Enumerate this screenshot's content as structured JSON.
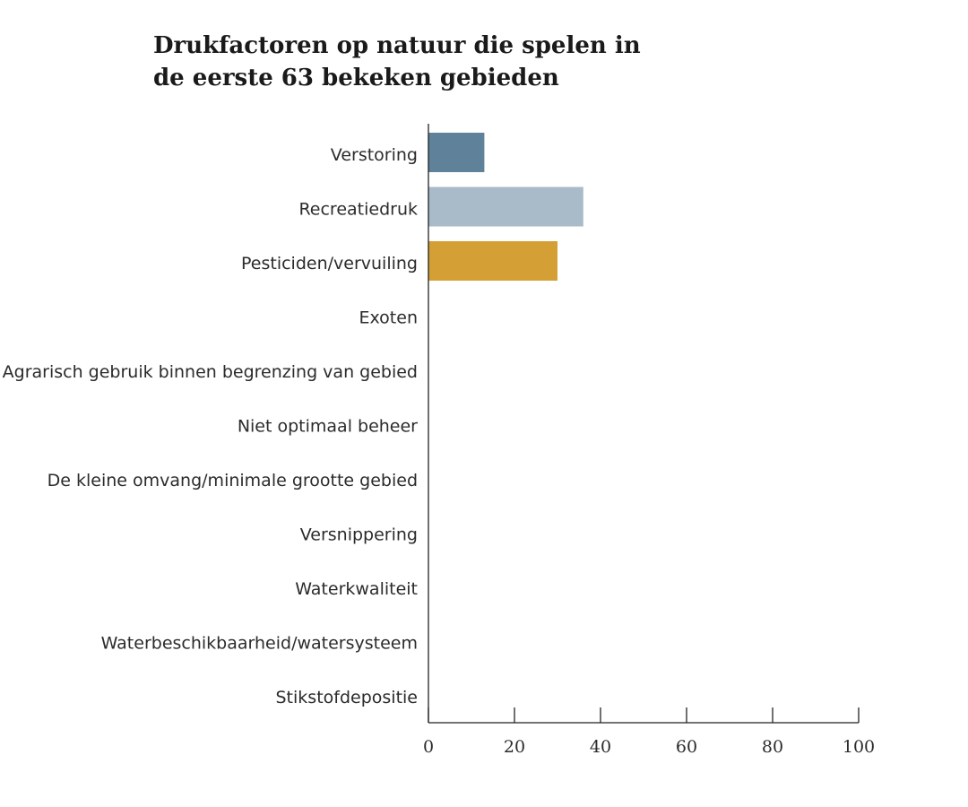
{
  "chart_data": {
    "type": "bar",
    "orientation": "horizontal",
    "title_lines": [
      "Drukfactoren op natuur die spelen in",
      "de eerste 63 bekeken gebieden"
    ],
    "categories": [
      "Verstoring",
      "Recreatiedruk",
      "Pesticiden/vervuiling",
      "Exoten",
      "Agrarisch gebruik binnen begrenzing van gebied",
      "Niet optimaal beheer",
      "De kleine omvang/minimale grootte gebied",
      "Versnippering",
      "Waterkwaliteit",
      "Waterbeschikbaarheid/watersysteem",
      "Stikstofdepositie"
    ],
    "values": [
      13,
      36,
      30,
      null,
      null,
      null,
      null,
      null,
      null,
      null,
      null
    ],
    "bar_colors": [
      "#5f8199",
      "#a9bac8",
      "#d4a035",
      null,
      null,
      null,
      null,
      null,
      null,
      null,
      null
    ],
    "xlim": [
      0,
      100
    ],
    "xticks": [
      0,
      20,
      40,
      60,
      80,
      100
    ],
    "xlabel": "",
    "ylabel": "",
    "grid": false,
    "legend": "none"
  }
}
